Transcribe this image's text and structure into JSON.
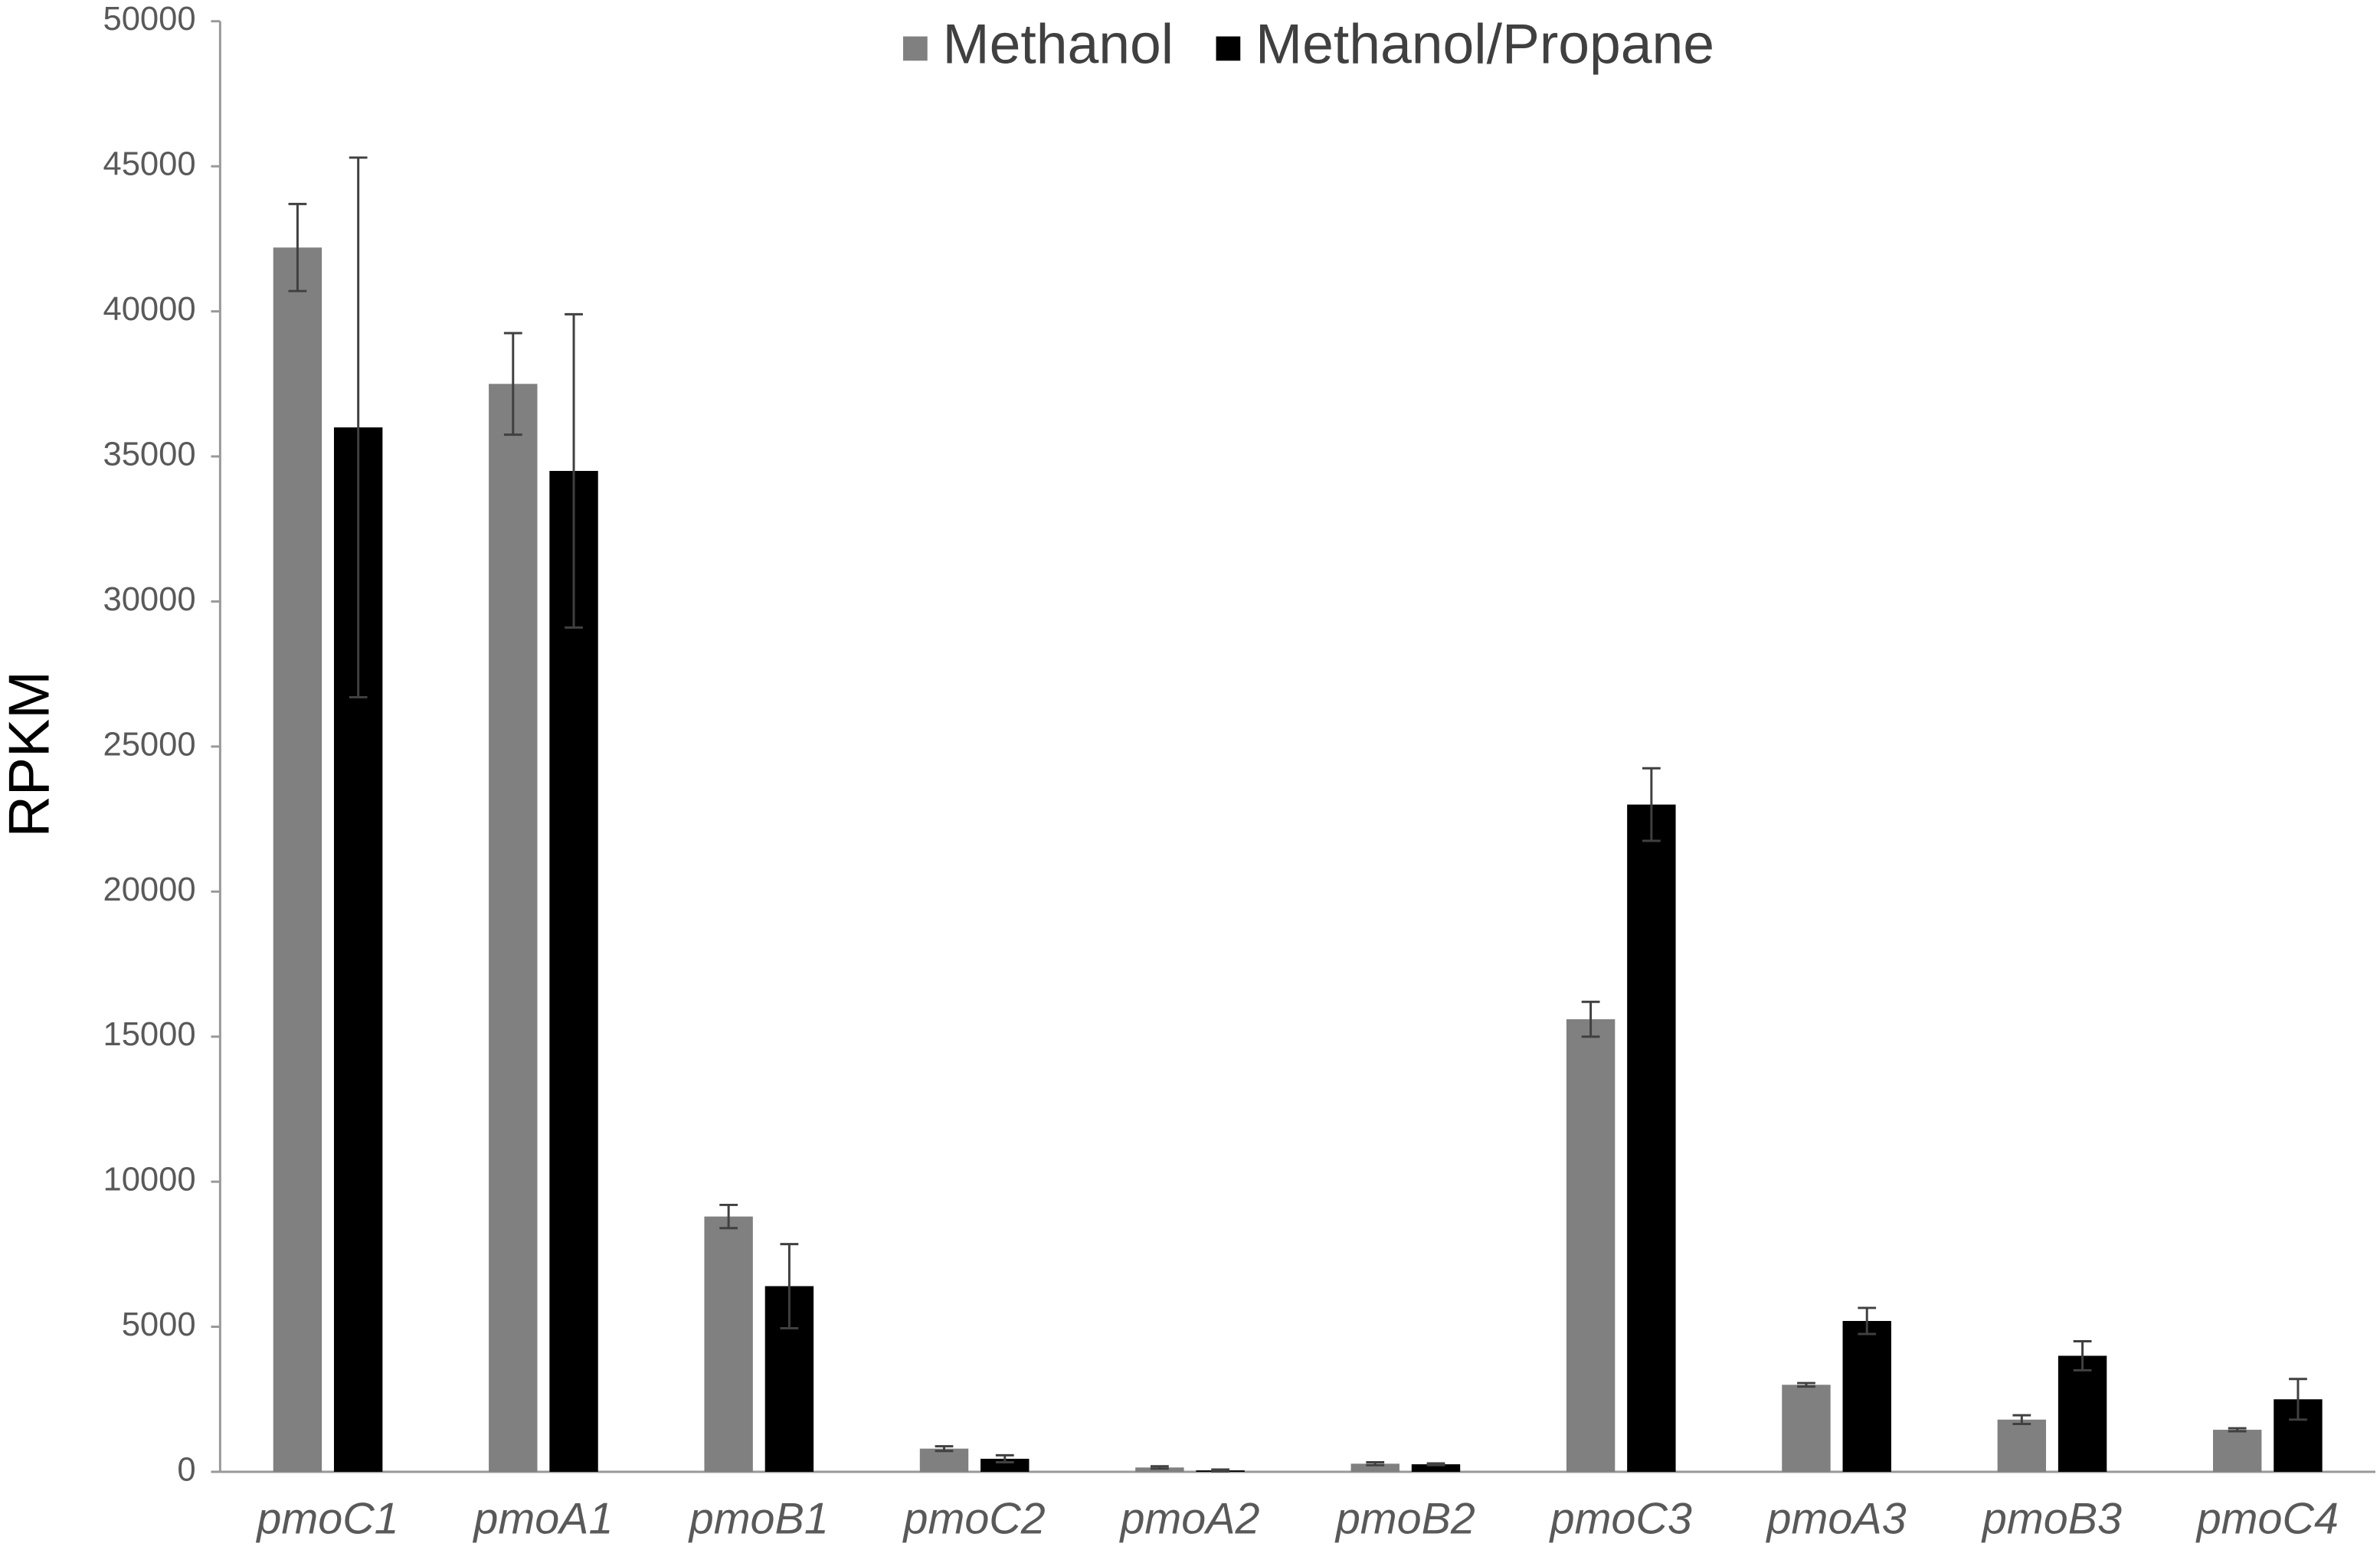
{
  "chart_data": {
    "type": "bar",
    "y_label": "RPKM",
    "categories": [
      "pmoC1",
      "pmoA1",
      "pmoB1",
      "pmoC2",
      "pmoA2",
      "pmoB2",
      "pmoC3",
      "pmoA3",
      "pmoB3",
      "pmoC4"
    ],
    "series": [
      {
        "name": "Methanol",
        "color": "#808080",
        "values": [
          42200,
          37500,
          8800,
          800,
          150,
          280,
          15600,
          3000,
          1800,
          1450
        ],
        "errors": [
          1500,
          1750,
          400,
          80,
          40,
          50,
          600,
          60,
          150,
          50
        ]
      },
      {
        "name": "Methanol/Propane",
        "color": "#000000",
        "values": [
          36000,
          34500,
          6400,
          450,
          50,
          260,
          23000,
          5200,
          4000,
          2500
        ],
        "errors": [
          9300,
          5400,
          1450,
          120,
          30,
          30,
          1250,
          450,
          500,
          700
        ]
      }
    ],
    "ylim": [
      0,
      50000
    ],
    "yticks": [
      0,
      5000,
      10000,
      15000,
      20000,
      25000,
      30000,
      35000,
      40000,
      45000,
      50000
    ],
    "legend": "top"
  }
}
